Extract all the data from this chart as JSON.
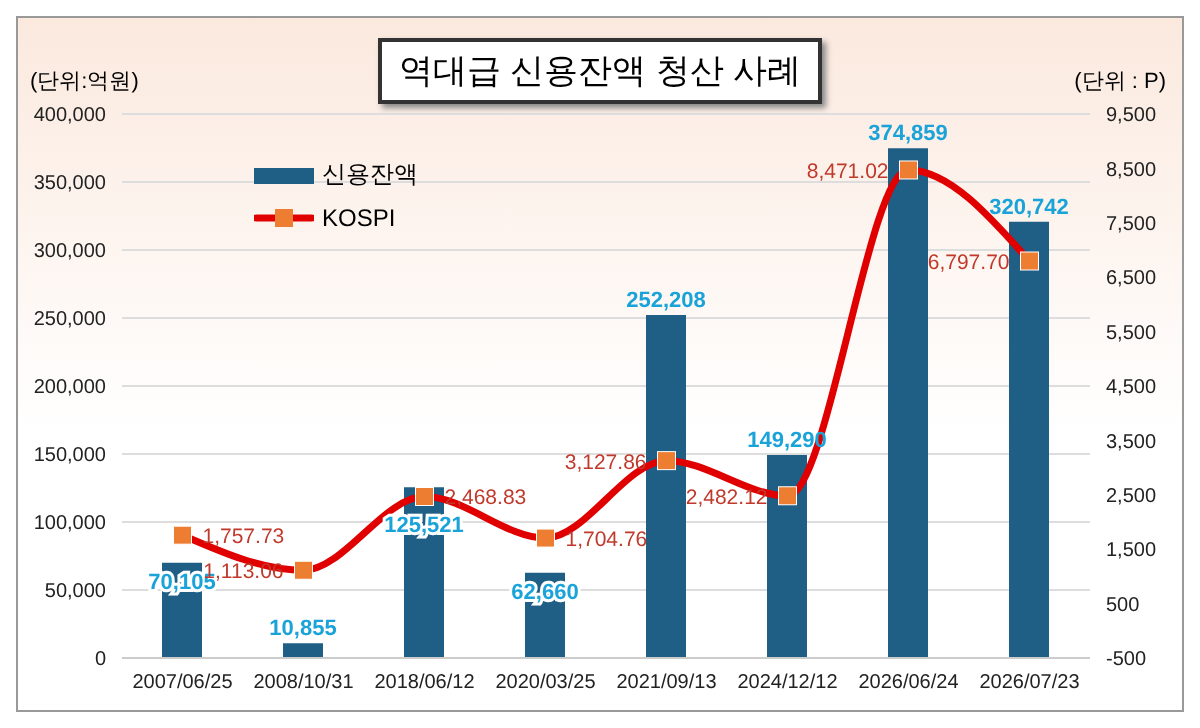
{
  "chart_data": {
    "type": "bar",
    "title": "역대급 신용잔액 청산 사례",
    "ylabel": "(단위:억원)",
    "y2label": "(단위 : P)",
    "categories": [
      "2007/06/25",
      "2008/10/31",
      "2018/06/12",
      "2020/03/25",
      "2021/09/13",
      "2024/12/12",
      "2026/06/24",
      "2026/07/23"
    ],
    "series": [
      {
        "name": "신용잔액",
        "color": "#1f5f85",
        "values": [
          70105,
          10855,
          125521,
          62660,
          252208,
          149290,
          374859,
          320742
        ],
        "value_labels": [
          "70,105",
          "10,855",
          "125,521",
          "62,660",
          "252,208",
          "149,290",
          "374,859",
          "320,742"
        ]
      },
      {
        "name": "KOSPI",
        "type": "line",
        "axis": "y2",
        "color": "#e00000",
        "marker": "square",
        "values": [
          1757.73,
          1113.06,
          2468.83,
          1704.76,
          3127.86,
          2482.12,
          8471.02,
          6797.7
        ],
        "value_labels": [
          "1,757.73",
          "1,113.06",
          "2,468.83",
          "1,704.76",
          "3,127.86",
          "2,482.12",
          "8,471.02",
          "6,797.70"
        ]
      }
    ],
    "ylim": [
      0,
      400000
    ],
    "yticks": [
      0,
      {
        "value": 50000,
        "label": "50,000"
      },
      {
        "value": 100000,
        "label": "100,000"
      },
      {
        "value": 150000,
        "label": "150,000"
      },
      {
        "value": 200000,
        "label": "200,000"
      },
      {
        "value": 250000,
        "label": "250,000"
      },
      {
        "value": 300000,
        "label": "300,000"
      },
      {
        "value": 350000,
        "label": "350,000"
      },
      {
        "value": 400000,
        "label": "400,000"
      }
    ],
    "y2lim": [
      -500,
      9500
    ],
    "y2ticks": [
      -500,
      500,
      {
        "value": 1500,
        "label": "1,500"
      },
      {
        "value": 2500,
        "label": "2,500"
      },
      {
        "value": 3500,
        "label": "3,500"
      },
      {
        "value": 4500,
        "label": "4,500"
      },
      {
        "value": 5500,
        "label": "5,500"
      },
      {
        "value": 6500,
        "label": "6,500"
      },
      {
        "value": 7500,
        "label": "7,500"
      },
      {
        "value": 8500,
        "label": "8,500"
      },
      {
        "value": 9500,
        "label": "9,500"
      }
    ],
    "grid": "y",
    "legend": "top left"
  }
}
